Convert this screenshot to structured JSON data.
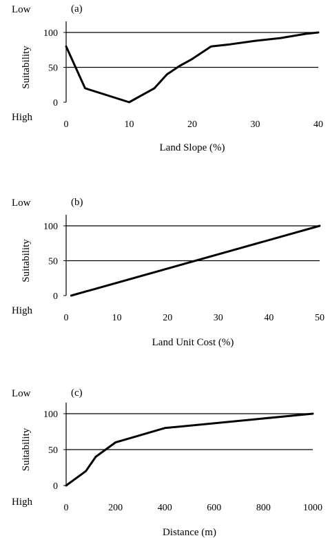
{
  "chart_data": [
    {
      "type": "line",
      "panel_label": "(a)",
      "top_label": "Low",
      "bottom_label": "High",
      "ylabel": "Suitability",
      "xlabel": "Land Slope (%)",
      "xlim": [
        0,
        40
      ],
      "ylim": [
        0,
        100
      ],
      "x_ticks": [
        0,
        10,
        20,
        30,
        40
      ],
      "y_ticks": [
        0,
        50,
        100
      ],
      "reference_lines": [
        50,
        100
      ],
      "x": [
        0,
        3,
        10,
        14,
        16,
        18,
        20,
        23,
        26,
        30,
        34,
        38,
        40
      ],
      "y": [
        80,
        20,
        0,
        20,
        40,
        52,
        62,
        80,
        83,
        88,
        92,
        98,
        100
      ]
    },
    {
      "type": "line",
      "panel_label": "(b)",
      "top_label": "Low",
      "bottom_label": "High",
      "ylabel": "Suitability",
      "xlabel": "Land Unit Cost (%)",
      "xlim": [
        0,
        50
      ],
      "ylim": [
        0,
        100
      ],
      "x_ticks": [
        0,
        10,
        20,
        30,
        40,
        50
      ],
      "y_ticks": [
        0,
        50,
        100
      ],
      "reference_lines": [
        50,
        100
      ],
      "x": [
        1,
        50
      ],
      "y": [
        0,
        100
      ]
    },
    {
      "type": "line",
      "panel_label": "(c)",
      "top_label": "Low",
      "bottom_label": "High",
      "ylabel": "Suitability",
      "xlabel": "Distance (m)",
      "xlim": [
        0,
        1000
      ],
      "ylim": [
        0,
        100
      ],
      "x_ticks": [
        0,
        200,
        400,
        600,
        800,
        1000
      ],
      "y_ticks": [
        0,
        50,
        100
      ],
      "reference_lines": [
        50,
        100
      ],
      "x": [
        0,
        80,
        120,
        200,
        400,
        1000
      ],
      "y": [
        0,
        20,
        40,
        60,
        80,
        100
      ]
    }
  ]
}
